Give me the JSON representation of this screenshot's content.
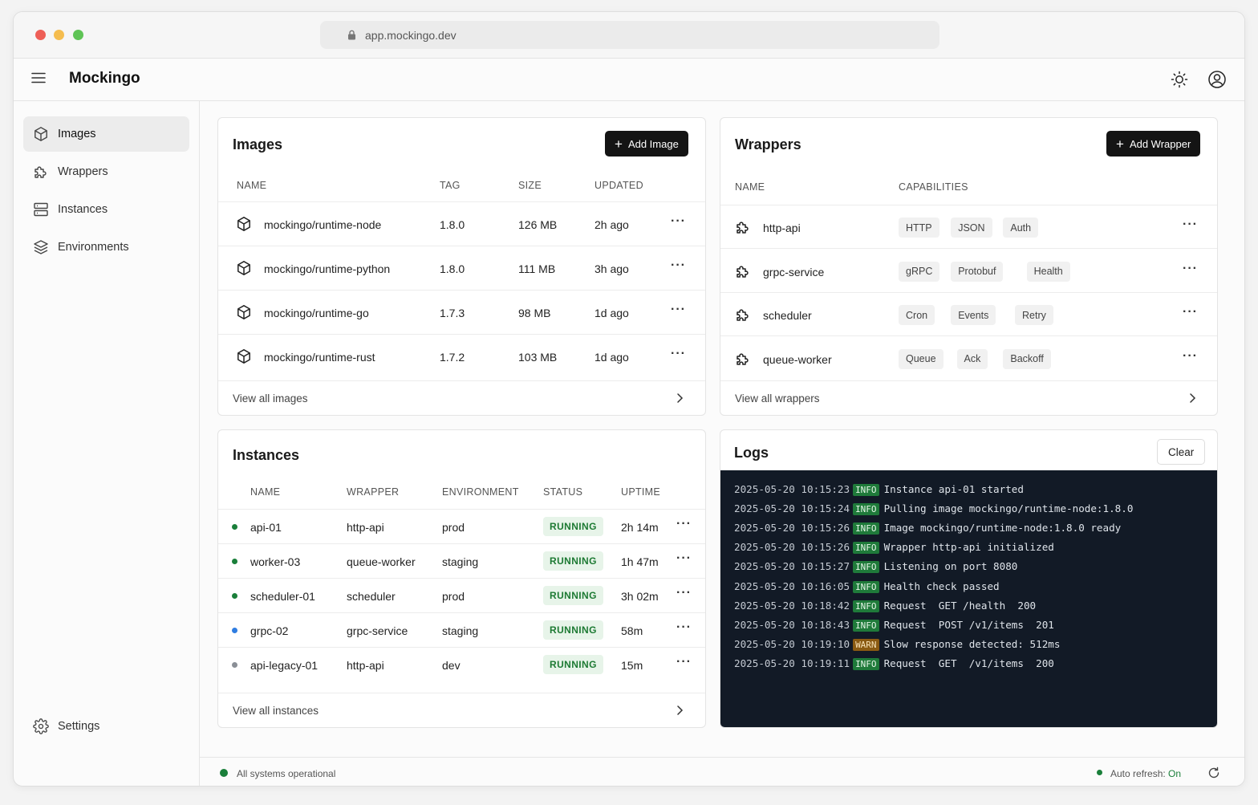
{
  "browser": {
    "url": "app.mockingo.dev"
  },
  "app": {
    "title": "Mockingo"
  },
  "sidebar": {
    "items": [
      {
        "label": "Images",
        "icon": "cube-icon"
      },
      {
        "label": "Wrappers",
        "icon": "puzzle-icon"
      },
      {
        "label": "Instances",
        "icon": "server-icon"
      },
      {
        "label": "Environments",
        "icon": "layers-icon"
      }
    ],
    "settings_label": "Settings"
  },
  "images": {
    "title": "Images",
    "add_label": "Add Image",
    "columns": [
      "NAME",
      "TAG",
      "SIZE",
      "UPDATED"
    ],
    "rows": [
      {
        "name": "mockingo/runtime-node",
        "tag": "1.8.0",
        "size": "126 MB",
        "updated": "2h ago"
      },
      {
        "name": "mockingo/runtime-python",
        "tag": "1.8.0",
        "size": "111 MB",
        "updated": "3h ago"
      },
      {
        "name": "mockingo/runtime-go",
        "tag": "1.7.3",
        "size": "98 MB",
        "updated": "1d ago"
      },
      {
        "name": "mockingo/runtime-rust",
        "tag": "1.7.2",
        "size": "103 MB",
        "updated": "1d ago"
      }
    ],
    "view_all": "View all images"
  },
  "wrappers": {
    "title": "Wrappers",
    "add_label": "Add Wrapper",
    "columns": [
      "NAME",
      "CAPABILITIES"
    ],
    "rows": [
      {
        "name": "http-api",
        "caps": [
          "HTTP",
          "JSON",
          "Auth"
        ]
      },
      {
        "name": "grpc-service",
        "caps": [
          "gRPC",
          "Protobuf",
          "Health"
        ]
      },
      {
        "name": "scheduler",
        "caps": [
          "Cron",
          "Events",
          "Retry"
        ]
      },
      {
        "name": "queue-worker",
        "caps": [
          "Queue",
          "Ack",
          "Backoff"
        ]
      }
    ],
    "view_all": "View all wrappers"
  },
  "instances": {
    "title": "Instances",
    "columns": [
      "NAME",
      "WRAPPER",
      "ENVIRONMENT",
      "STATUS",
      "UPTIME"
    ],
    "rows": [
      {
        "name": "api-01",
        "wrapper": "http-api",
        "env": "prod",
        "status": "RUNNING",
        "uptime": "2h 14m",
        "dot": "#1a7f3a"
      },
      {
        "name": "worker-03",
        "wrapper": "queue-worker",
        "env": "staging",
        "status": "RUNNING",
        "uptime": "1h 47m",
        "dot": "#1a7f3a"
      },
      {
        "name": "scheduler-01",
        "wrapper": "scheduler",
        "env": "prod",
        "status": "RUNNING",
        "uptime": "3h 02m",
        "dot": "#1a7f3a"
      },
      {
        "name": "grpc-02",
        "wrapper": "grpc-service",
        "env": "staging",
        "status": "RUNNING",
        "uptime": "58m",
        "dot": "#2f7de1"
      },
      {
        "name": "api-legacy-01",
        "wrapper": "http-api",
        "env": "dev",
        "status": "RUNNING",
        "uptime": "15m",
        "dot": "#8a8f96"
      }
    ],
    "view_all": "View all instances"
  },
  "logs": {
    "title": "Logs",
    "clear_label": "Clear",
    "lines": [
      {
        "ts": "2025-05-20 10:15:23",
        "level": "INFO",
        "msg": "Instance api-01 started"
      },
      {
        "ts": "2025-05-20 10:15:24",
        "level": "INFO",
        "msg": "Pulling image mockingo/runtime-node:1.8.0"
      },
      {
        "ts": "2025-05-20 10:15:26",
        "level": "INFO",
        "msg": "Image mockingo/runtime-node:1.8.0 ready"
      },
      {
        "ts": "2025-05-20 10:15:26",
        "level": "INFO",
        "msg": "Wrapper http-api initialized"
      },
      {
        "ts": "2025-05-20 10:15:27",
        "level": "INFO",
        "msg": "Listening on port 8080"
      },
      {
        "ts": "2025-05-20 10:16:05",
        "level": "INFO",
        "msg": "Health check passed"
      },
      {
        "ts": "2025-05-20 10:18:42",
        "level": "INFO",
        "msg": "Request  GET /health  200"
      },
      {
        "ts": "2025-05-20 10:18:43",
        "level": "INFO",
        "msg": "Request  POST /v1/items  201"
      },
      {
        "ts": "2025-05-20 10:19:10",
        "level": "WARN",
        "msg": "Slow response detected: 512ms"
      },
      {
        "ts": "2025-05-20 10:19:11",
        "level": "INFO",
        "msg": "Request  GET  /v1/items  200"
      }
    ]
  },
  "statusbar": {
    "system_status": "All systems operational",
    "auto_refresh_label": "Auto refresh:",
    "auto_refresh_value": "On"
  },
  "colors": {
    "accent_dark": "#141414",
    "running_badge": "#1d7a33",
    "log_background": "#121a26",
    "status_ok": "#1a7f3a"
  }
}
